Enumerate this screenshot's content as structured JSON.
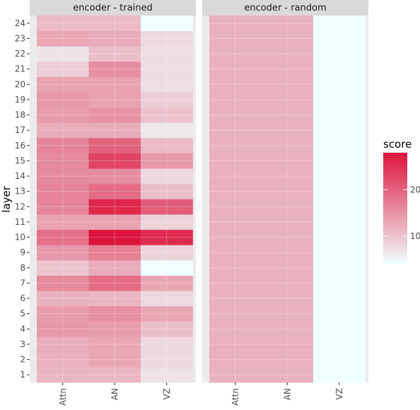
{
  "chart_data": {
    "type": "heatmap",
    "title": "",
    "xlabel": "",
    "ylabel": "layer",
    "x_categories": [
      "Attn",
      "AN",
      "VZ"
    ],
    "y_categories": [
      "1",
      "2",
      "3",
      "4",
      "5",
      "6",
      "7",
      "8",
      "9",
      "10",
      "11",
      "12",
      "13",
      "14",
      "15",
      "16",
      "17",
      "18",
      "19",
      "20",
      "21",
      "22",
      "23",
      "24"
    ],
    "facets": [
      {
        "label": "encoder - trained",
        "values": {
          "Attn": [
            11.5,
            12.0,
            12.5,
            14.5,
            14.0,
            12.0,
            16.0,
            10.0,
            14.5,
            18.5,
            13.5,
            16.5,
            16.5,
            16.0,
            16.0,
            16.5,
            12.5,
            14.0,
            14.5,
            13.5,
            9.0,
            7.0,
            13.0,
            11.0
          ],
          "AN": [
            11.5,
            13.0,
            13.0,
            14.0,
            15.5,
            11.5,
            19.0,
            12.5,
            17.0,
            28.0,
            13.5,
            26.0,
            19.0,
            15.5,
            23.0,
            20.0,
            12.5,
            15.0,
            13.5,
            13.5,
            15.5,
            10.5,
            12.5,
            11.0
          ],
          "VZ": [
            7.0,
            8.0,
            8.0,
            10.5,
            13.0,
            8.0,
            13.0,
            4.0,
            8.5,
            25.5,
            8.5,
            20.5,
            10.5,
            8.0,
            14.5,
            11.0,
            6.5,
            10.0,
            9.0,
            7.5,
            7.5,
            7.5,
            8.0,
            4.0
          ]
        }
      },
      {
        "label": "encoder - random",
        "values": {
          "Attn": [
            12,
            12,
            12,
            12,
            12,
            12,
            12,
            12,
            12,
            12,
            12,
            12,
            12,
            12,
            12,
            12,
            12,
            12,
            12,
            12,
            12,
            12,
            12,
            12
          ],
          "AN": [
            12,
            12,
            12,
            12,
            12,
            12,
            12,
            12,
            12,
            12,
            12,
            12,
            12,
            12,
            12,
            12,
            12,
            12,
            12,
            12,
            12,
            12,
            12,
            12
          ],
          "VZ": [
            4,
            4,
            4,
            4,
            4,
            4,
            4,
            4,
            4,
            4,
            4,
            4,
            4,
            4,
            4,
            4,
            4,
            4,
            4,
            4,
            4,
            4,
            4,
            4
          ]
        }
      }
    ],
    "legend": {
      "title": "score",
      "position": "right",
      "ticks": [
        10,
        20
      ],
      "min": 4,
      "max": 28,
      "low_color": "#f0ffff",
      "high_color": "#dc143c"
    },
    "panel_background": "#ebebeb",
    "strip_background": "#d9d9d9",
    "grid": true
  }
}
